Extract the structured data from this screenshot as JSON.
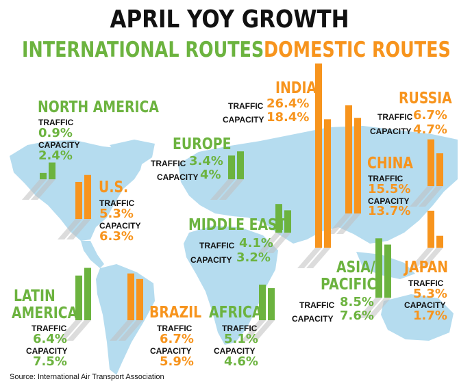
{
  "title": "APRIL YOY GROWTH",
  "legend": {
    "international": "INTERNATIONAL ROUTES",
    "domestic": "DOMESTIC ROUTES"
  },
  "colors": {
    "international": "#6cb33f",
    "domestic": "#f7941d",
    "map": "#b5dcef",
    "text": "#111111"
  },
  "source": "Source: International Air Transport Association",
  "chart_data": {
    "type": "bar",
    "title": "APRIL YOY GROWTH",
    "series": [
      {
        "name": "TRAFFIC"
      },
      {
        "name": "CAPACITY"
      }
    ],
    "groups": [
      {
        "name": "NORTH AMERICA",
        "route_type": "INTERNATIONAL ROUTES",
        "traffic": 0.9,
        "capacity": 2.4,
        "traffic_label": "0.9%",
        "capacity_label": "2.4%"
      },
      {
        "name": "U.S.",
        "route_type": "DOMESTIC ROUTES",
        "traffic": 5.3,
        "capacity": 6.3,
        "traffic_label": "5.3%",
        "capacity_label": "6.3%"
      },
      {
        "name": "EUROPE",
        "route_type": "INTERNATIONAL ROUTES",
        "traffic": 3.4,
        "capacity": 4.0,
        "traffic_label": "3.4%",
        "capacity_label": "4%"
      },
      {
        "name": "INDIA",
        "route_type": "DOMESTIC ROUTES",
        "traffic": 26.4,
        "capacity": 18.4,
        "traffic_label": "26.4%",
        "capacity_label": "18.4%"
      },
      {
        "name": "RUSSIA",
        "route_type": "DOMESTIC ROUTES",
        "traffic": 6.7,
        "capacity": 4.7,
        "traffic_label": "6.7%",
        "capacity_label": "4.7%"
      },
      {
        "name": "CHINA",
        "route_type": "DOMESTIC ROUTES",
        "traffic": 15.5,
        "capacity": 13.7,
        "traffic_label": "15.5%",
        "capacity_label": "13.7%"
      },
      {
        "name": "MIDDLE EAST",
        "route_type": "INTERNATIONAL ROUTES",
        "traffic": 4.1,
        "capacity": 3.2,
        "traffic_label": "4.1%",
        "capacity_label": "3.2%"
      },
      {
        "name": "ASIA/ PACIFIC",
        "route_type": "INTERNATIONAL ROUTES",
        "traffic": 8.5,
        "capacity": 7.6,
        "traffic_label": "8.5%",
        "capacity_label": "7.6%"
      },
      {
        "name": "JAPAN",
        "route_type": "DOMESTIC ROUTES",
        "traffic": 5.3,
        "capacity": 1.7,
        "traffic_label": "5.3%",
        "capacity_label": "1.7%"
      },
      {
        "name": "LATIN AMERICA",
        "route_type": "INTERNATIONAL ROUTES",
        "traffic": 6.4,
        "capacity": 7.5,
        "traffic_label": "6.4%",
        "capacity_label": "7.5%"
      },
      {
        "name": "BRAZIL",
        "route_type": "DOMESTIC ROUTES",
        "traffic": 6.7,
        "capacity": 5.9,
        "traffic_label": "6.7%",
        "capacity_label": "5.9%"
      },
      {
        "name": "AFRICA",
        "route_type": "INTERNATIONAL ROUTES",
        "traffic": 5.1,
        "capacity": 4.6,
        "traffic_label": "5.1%",
        "capacity_label": "4.6%"
      }
    ],
    "value_unit": "%"
  },
  "labels": {
    "traffic": "TRAFFIC",
    "capacity": "CAPACITY"
  }
}
